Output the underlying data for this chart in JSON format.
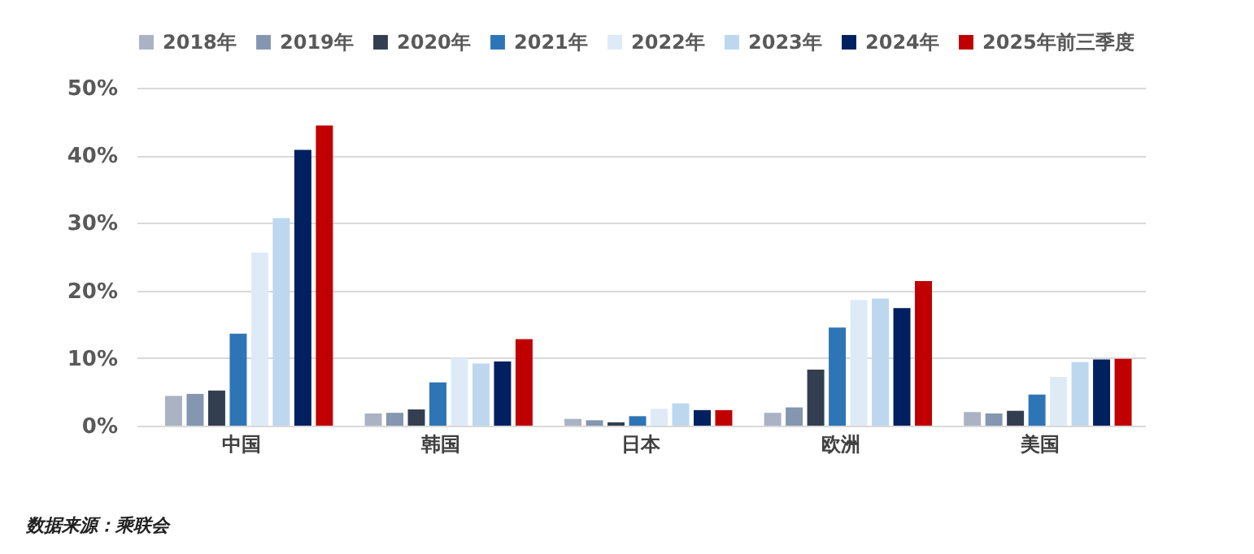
{
  "chart_data": {
    "type": "bar",
    "categories": [
      "中国",
      "韩国",
      "日本",
      "欧洲",
      "美国"
    ],
    "series": [
      {
        "name": "2018年",
        "color": "#aab2c4",
        "values": [
          4.4,
          1.8,
          1.0,
          1.9,
          2.0
        ]
      },
      {
        "name": "2019年",
        "color": "#8496b0",
        "values": [
          4.7,
          1.9,
          0.8,
          2.7,
          1.8
        ]
      },
      {
        "name": "2020年",
        "color": "#333f50",
        "values": [
          5.2,
          2.4,
          0.5,
          8.3,
          2.2
        ]
      },
      {
        "name": "2021年",
        "color": "#2e75b6",
        "values": [
          13.6,
          6.4,
          1.4,
          14.5,
          4.6
        ]
      },
      {
        "name": "2022年",
        "color": "#deebf7",
        "values": [
          25.6,
          10.0,
          2.5,
          18.6,
          7.2
        ]
      },
      {
        "name": "2023年",
        "color": "#bdd7ee",
        "values": [
          30.7,
          9.2,
          3.3,
          18.8,
          9.4
        ]
      },
      {
        "name": "2024年",
        "color": "#002060",
        "values": [
          40.8,
          9.5,
          2.3,
          17.4,
          9.8
        ]
      },
      {
        "name": "2025年前三季度",
        "color": "#c00000",
        "values": [
          44.4,
          12.8,
          2.3,
          21.4,
          9.9
        ]
      }
    ],
    "ylim": [
      0,
      50
    ],
    "yticks": [
      {
        "value": 0,
        "label": "0%"
      },
      {
        "value": 10,
        "label": "10%"
      },
      {
        "value": 20,
        "label": "20%"
      },
      {
        "value": 30,
        "label": "30%"
      },
      {
        "value": 40,
        "label": "40%"
      },
      {
        "value": 50,
        "label": "50%"
      }
    ],
    "grid": "y",
    "legend": "top",
    "annotations": [
      "数据来源：乘联会"
    ]
  }
}
